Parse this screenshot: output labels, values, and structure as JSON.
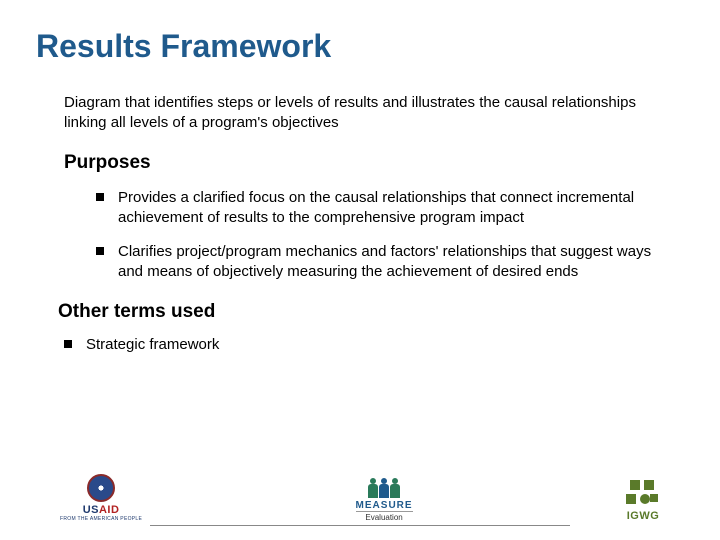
{
  "title": "Results Framework",
  "intro": "Diagram that identifies steps or levels of results and illustrates the causal relationships linking all levels of a program's objectives",
  "purposes_heading": "Purposes",
  "purposes": [
    "Provides a clarified focus on the causal relationships that connect incremental achievement of results to the comprehensive program impact",
    "Clarifies project/program mechanics and factors' relationships that suggest ways and means of objectively measuring the achievement of desired ends"
  ],
  "other_terms_heading": "Other terms used",
  "other_terms": [
    "Strategic framework"
  ],
  "logos": {
    "usaid": {
      "name": "USAID",
      "tagline": "FROM THE AMERICAN PEOPLE"
    },
    "measure": {
      "name": "MEASURE",
      "subtitle": "Evaluation"
    },
    "igwg": {
      "name": "IGWG"
    }
  },
  "colors": {
    "title": "#1f5a8c",
    "text": "#000000",
    "bullet": "#000000",
    "background": "#ffffff"
  },
  "typography": {
    "title_fontsize": 32,
    "heading_fontsize": 19,
    "body_fontsize": 15
  }
}
